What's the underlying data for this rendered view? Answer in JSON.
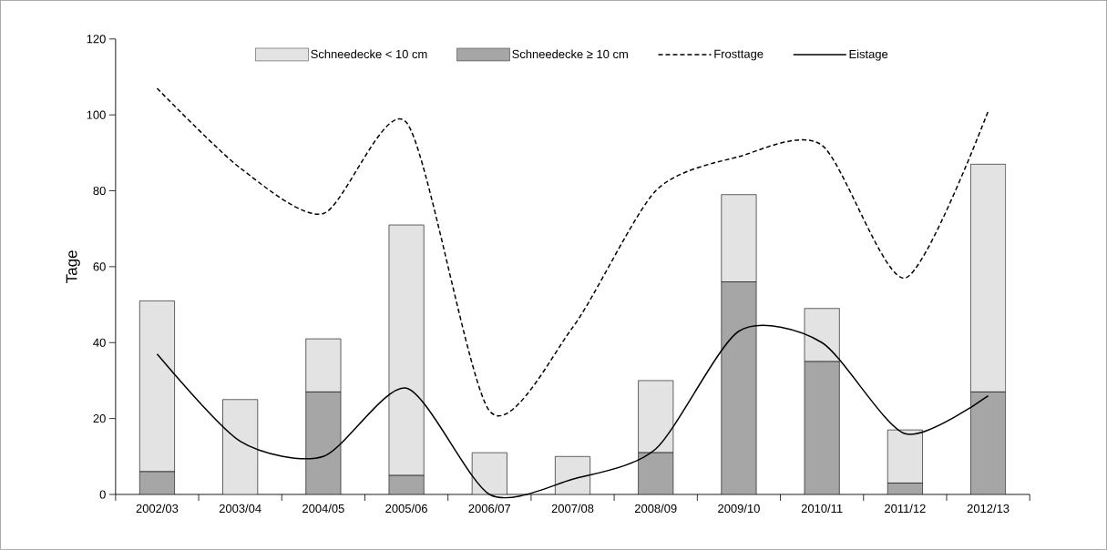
{
  "chart_data": {
    "type": "bar",
    "stacked": true,
    "ylabel": "Tage",
    "legend": "top",
    "categories": [
      "2002/03",
      "2003/04",
      "2004/05",
      "2005/06",
      "2006/07",
      "2007/08",
      "2008/09",
      "2009/10",
      "2010/11",
      "2011/12",
      "2012/13"
    ],
    "ylim": [
      0,
      120
    ],
    "yticks": [
      0,
      20,
      40,
      60,
      80,
      100,
      120
    ],
    "series": [
      {
        "name": "Schneedecke ≥ 10 cm",
        "color": "#a6a6a6",
        "values": [
          6,
          0,
          27,
          5,
          0,
          0,
          11,
          56,
          35,
          3,
          27
        ]
      },
      {
        "name": "Schneedecke < 10 cm",
        "color": "#e3e3e3",
        "values": [
          45,
          25,
          14,
          66,
          11,
          10,
          19,
          23,
          14,
          14,
          60
        ]
      },
      {
        "name": "Frosttage",
        "type": "line",
        "line_style": "dashed",
        "color": "#000000",
        "values": [
          107,
          86,
          74,
          98,
          22,
          44,
          80,
          89,
          92,
          57,
          101
        ]
      },
      {
        "name": "Eistage",
        "type": "line",
        "line_style": "solid",
        "color": "#000000",
        "values": [
          37,
          14,
          10,
          28,
          0,
          4,
          12,
          43,
          40,
          16,
          26
        ]
      }
    ]
  }
}
